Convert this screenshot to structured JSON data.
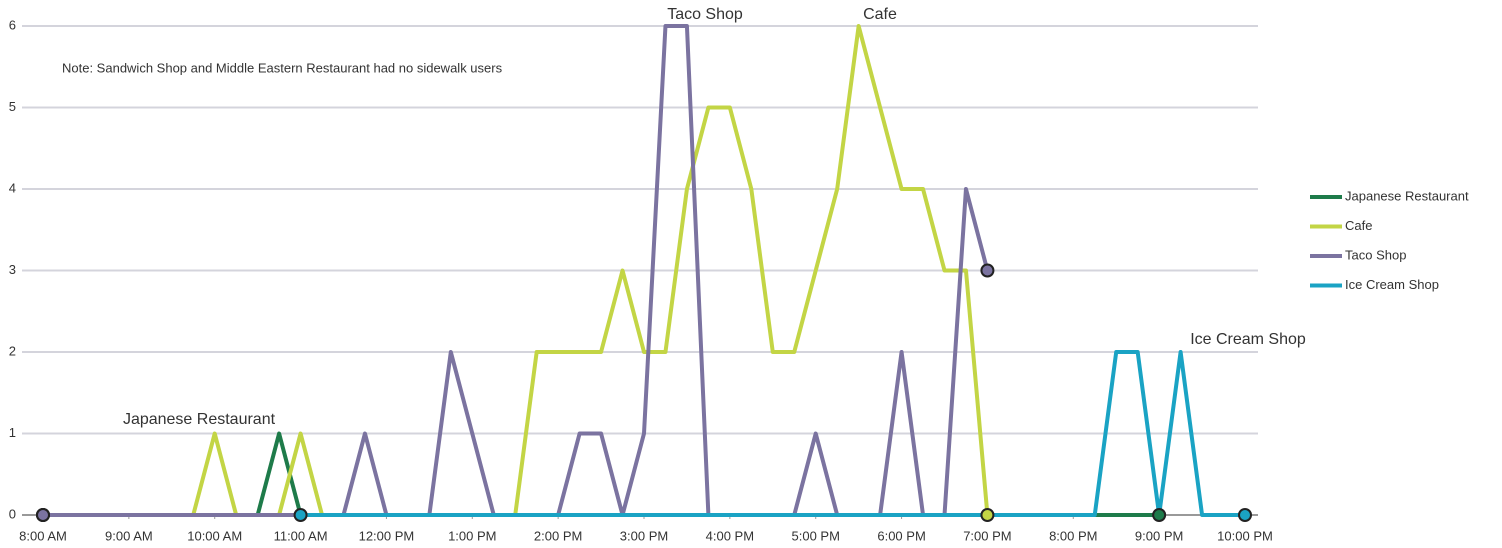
{
  "chart_data": {
    "type": "line",
    "annotations": [
      "Note: Sandwich Shop and Middle Eastern Restaurant had no sidewalk users"
    ],
    "x": [
      8,
      8.25,
      8.5,
      8.75,
      9,
      9.25,
      9.5,
      9.75,
      10,
      10.25,
      10.5,
      10.75,
      11,
      11.25,
      11.5,
      11.75,
      12,
      12.25,
      12.5,
      12.75,
      13,
      13.25,
      13.5,
      13.75,
      14,
      14.25,
      14.5,
      14.75,
      15,
      15.25,
      15.5,
      15.75,
      16,
      16.25,
      16.5,
      16.75,
      17,
      17.25,
      17.5,
      17.75,
      18,
      18.25,
      18.5,
      18.75,
      19,
      19.25,
      19.5,
      19.75,
      20,
      20.25,
      20.5,
      20.75,
      21,
      21.25,
      21.5,
      21.75,
      22
    ],
    "series": [
      {
        "name": "Japanese Restaurant",
        "color": "#1e7b4a",
        "values": [
          0,
          0,
          0,
          0,
          0,
          0,
          0,
          0,
          0,
          0,
          0,
          1,
          0,
          0,
          0,
          0,
          0,
          0,
          0,
          0,
          0,
          0,
          0,
          0,
          0,
          0,
          0,
          0,
          0,
          0,
          0,
          0,
          0,
          0,
          0,
          0,
          0,
          0,
          0,
          0,
          0,
          0,
          0,
          0,
          0,
          0,
          0,
          0,
          0,
          0,
          0,
          0,
          0,
          null,
          null,
          null,
          null
        ]
      },
      {
        "name": "Cafe",
        "color": "#c3d545",
        "values": [
          0,
          0,
          0,
          0,
          0,
          0,
          0,
          0,
          1,
          0,
          0,
          0,
          1,
          0,
          0,
          0,
          0,
          0,
          0,
          0,
          0,
          0,
          0,
          2,
          2,
          2,
          2,
          3,
          2,
          2,
          4,
          5,
          5,
          4,
          2,
          2,
          3,
          4,
          6,
          5,
          4,
          4,
          3,
          3,
          0,
          null,
          null,
          null,
          null,
          null,
          null,
          null,
          null,
          null,
          null,
          null,
          null
        ]
      },
      {
        "name": "Taco Shop",
        "color": "#7b73a0",
        "values": [
          0,
          0,
          0,
          0,
          0,
          0,
          0,
          0,
          0,
          0,
          0,
          0,
          0,
          0,
          0,
          1,
          0,
          0,
          0,
          2,
          1,
          0,
          0,
          0,
          0,
          1,
          1,
          0,
          1,
          6,
          6,
          0,
          0,
          0,
          0,
          0,
          1,
          0,
          0,
          0,
          2,
          0,
          0,
          4,
          3,
          null,
          null,
          null,
          null,
          null,
          null,
          null,
          null,
          null,
          null,
          null,
          null
        ]
      },
      {
        "name": "Ice Cream Shop",
        "color": "#1aa3c4",
        "values": [
          null,
          null,
          null,
          null,
          null,
          null,
          null,
          null,
          null,
          null,
          null,
          null,
          0,
          0,
          0,
          0,
          0,
          0,
          0,
          0,
          0,
          0,
          0,
          0,
          0,
          0,
          0,
          0,
          0,
          0,
          0,
          0,
          0,
          0,
          0,
          0,
          0,
          0,
          0,
          0,
          0,
          0,
          0,
          0,
          0,
          0,
          0,
          0,
          0,
          0,
          2,
          2,
          0,
          2,
          0,
          0,
          0
        ]
      }
    ],
    "xlim": [
      8,
      22
    ],
    "xticks": [
      {
        "value": 8,
        "label": "8:00 AM"
      },
      {
        "value": 9,
        "label": "9:00 AM"
      },
      {
        "value": 10,
        "label": "10:00 AM"
      },
      {
        "value": 11,
        "label": "11:00 AM"
      },
      {
        "value": 12,
        "label": "12:00 PM"
      },
      {
        "value": 13,
        "label": "1:00 PM"
      },
      {
        "value": 14,
        "label": "2:00 PM"
      },
      {
        "value": 15,
        "label": "3:00 PM"
      },
      {
        "value": 16,
        "label": "4:00 PM"
      },
      {
        "value": 17,
        "label": "5:00 PM"
      },
      {
        "value": 18,
        "label": "6:00 PM"
      },
      {
        "value": 19,
        "label": "7:00 PM"
      },
      {
        "value": 20,
        "label": "8:00 PM"
      },
      {
        "value": 21,
        "label": "9:00 PM"
      },
      {
        "value": 22,
        "label": "10:00 PM"
      }
    ],
    "ylim": [
      0,
      6
    ],
    "yticks": [
      0,
      1,
      2,
      3,
      4,
      5,
      6
    ],
    "grid": true,
    "legend": "right"
  }
}
